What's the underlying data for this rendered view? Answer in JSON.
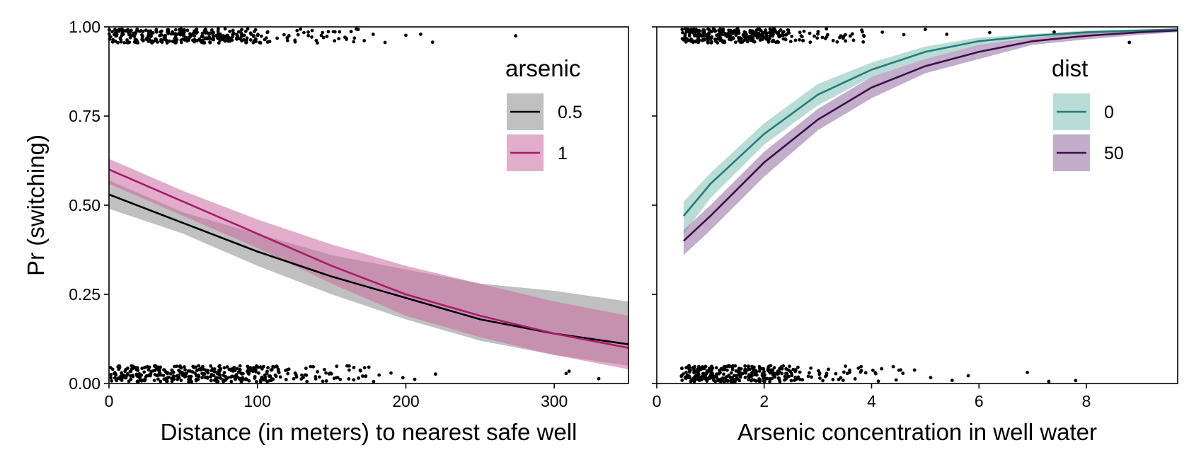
{
  "chart_data": [
    {
      "type": "line",
      "panel": "left",
      "xlabel": "Distance (in meters) to nearest safe well",
      "ylabel": "Pr (switching)",
      "xlim": [
        0,
        350
      ],
      "ylim": [
        0,
        1
      ],
      "xticks": [
        0,
        100,
        200,
        300
      ],
      "xtick_labels": [
        "0",
        "100",
        "200",
        "300"
      ],
      "yticks": [
        0,
        0.25,
        0.5,
        0.75,
        1.0
      ],
      "ytick_labels": [
        "0.00",
        "0.25",
        "0.50",
        "0.75",
        "1.00"
      ],
      "grid": false,
      "legend": {
        "title": "arsenic",
        "placement": "top-right"
      },
      "x": [
        0,
        50,
        100,
        150,
        200,
        250,
        300,
        350
      ],
      "series": [
        {
          "name": "0.5",
          "color": "#000000",
          "band_color": "#8c8c8c",
          "values": [
            0.53,
            0.45,
            0.37,
            0.3,
            0.24,
            0.18,
            0.14,
            0.11
          ],
          "lower": [
            0.49,
            0.42,
            0.33,
            0.25,
            0.18,
            0.12,
            0.08,
            0.05
          ],
          "upper": [
            0.57,
            0.48,
            0.42,
            0.36,
            0.32,
            0.28,
            0.26,
            0.23
          ]
        },
        {
          "name": "1",
          "color": "#a81a6a",
          "band_color": "#c86a9e",
          "values": [
            0.6,
            0.51,
            0.42,
            0.33,
            0.25,
            0.19,
            0.14,
            0.1
          ],
          "lower": [
            0.56,
            0.47,
            0.38,
            0.28,
            0.19,
            0.13,
            0.08,
            0.04
          ],
          "upper": [
            0.63,
            0.54,
            0.46,
            0.39,
            0.33,
            0.28,
            0.23,
            0.19
          ]
        }
      ],
      "jitter_points": {
        "near_zero": [
          4,
          9,
          13,
          18,
          22,
          27,
          31,
          36,
          40,
          45,
          49,
          54,
          58,
          63,
          67,
          72,
          76,
          81,
          86,
          91,
          96,
          101,
          106,
          112,
          118,
          124,
          130,
          136,
          142,
          148,
          155,
          162,
          168,
          175,
          182,
          190,
          198,
          206,
          220,
          310,
          308,
          330
        ],
        "near_one": [
          3,
          7,
          11,
          16,
          20,
          25,
          29,
          34,
          38,
          43,
          47,
          52,
          56,
          61,
          66,
          71,
          76,
          81,
          86,
          92,
          98,
          104,
          110,
          118,
          126,
          134,
          142,
          150,
          158,
          165,
          172,
          178,
          186,
          200,
          210,
          218,
          274
        ]
      }
    },
    {
      "type": "line",
      "panel": "right",
      "xlabel": "Arsenic concentration in well water",
      "ylabel": "",
      "xlim": [
        0,
        9.7
      ],
      "ylim": [
        0,
        1
      ],
      "xticks": [
        0,
        2,
        4,
        6,
        8
      ],
      "xtick_labels": [
        "0",
        "2",
        "4",
        "6",
        "8"
      ],
      "grid": false,
      "legend": {
        "title": "dist",
        "placement": "top-right"
      },
      "x": [
        0.5,
        1,
        2,
        3,
        4,
        5,
        6,
        7,
        8,
        9,
        9.7
      ],
      "series": [
        {
          "name": "0",
          "color": "#1f7f76",
          "band_color": "#7fbfb6",
          "values": [
            0.47,
            0.56,
            0.7,
            0.81,
            0.88,
            0.93,
            0.96,
            0.975,
            0.985,
            0.99,
            0.993
          ],
          "lower": [
            0.42,
            0.52,
            0.67,
            0.78,
            0.86,
            0.91,
            0.95,
            0.97,
            0.98,
            0.987,
            0.99
          ],
          "upper": [
            0.51,
            0.59,
            0.73,
            0.84,
            0.9,
            0.945,
            0.97,
            0.98,
            0.99,
            0.993,
            0.996
          ]
        },
        {
          "name": "50",
          "color": "#3d0e4a",
          "band_color": "#8f6a9e",
          "values": [
            0.4,
            0.47,
            0.62,
            0.74,
            0.83,
            0.89,
            0.93,
            0.96,
            0.975,
            0.985,
            0.99
          ],
          "lower": [
            0.36,
            0.43,
            0.58,
            0.71,
            0.8,
            0.87,
            0.91,
            0.95,
            0.965,
            0.978,
            0.985
          ],
          "upper": [
            0.43,
            0.5,
            0.65,
            0.77,
            0.86,
            0.91,
            0.95,
            0.97,
            0.983,
            0.99,
            0.994
          ]
        }
      ],
      "jitter_points": {
        "near_zero": [
          0.55,
          0.62,
          0.7,
          0.78,
          0.86,
          0.94,
          1.02,
          1.1,
          1.2,
          1.3,
          1.4,
          1.5,
          1.6,
          1.7,
          1.8,
          1.9,
          2.0,
          2.1,
          2.2,
          2.35,
          2.5,
          2.65,
          2.8,
          3.0,
          3.2,
          3.4,
          3.6,
          3.8,
          4.1,
          4.5,
          4.8,
          5.1,
          5.5,
          5.8,
          6.9,
          7.3,
          7.8
        ],
        "near_one": [
          0.55,
          0.62,
          0.7,
          0.78,
          0.86,
          0.94,
          1.02,
          1.1,
          1.2,
          1.3,
          1.4,
          1.5,
          1.6,
          1.7,
          1.8,
          1.9,
          2.0,
          2.1,
          2.2,
          2.35,
          2.5,
          2.65,
          2.8,
          3.0,
          3.2,
          3.4,
          3.6,
          3.9,
          4.2,
          4.6,
          5.0,
          5.4,
          6.2,
          7.4,
          8.8
        ]
      }
    }
  ]
}
